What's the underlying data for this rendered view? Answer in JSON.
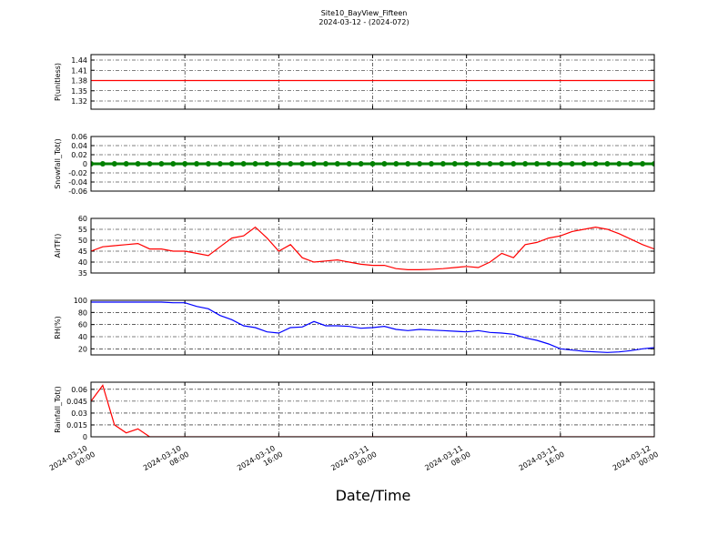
{
  "title": "Site10_BayView_Fifteen",
  "subtitle": "2024-03-12 - (2024-072)",
  "xlabel": "Date/Time",
  "chart_data": [
    {
      "type": "line",
      "ylabel": "P(unitless)",
      "color": "#ff0000",
      "ylim": [
        1.296,
        1.456
      ],
      "yticks": [
        1.32,
        1.35,
        1.38,
        1.41,
        1.44
      ],
      "grid": true,
      "xlim": [
        "2024-03-10 00:00",
        "2024-03-12 00:00"
      ],
      "xticks": [
        "2024-03-10 00:00",
        "2024-03-10 08:00",
        "2024-03-10 16:00",
        "2024-03-11 00:00",
        "2024-03-11 08:00",
        "2024-03-11 16:00",
        "2024-03-12 00:00"
      ],
      "x": [
        "2024-03-10 00:00",
        "2024-03-10 01:00",
        "2024-03-10 02:00",
        "2024-03-10 03:00",
        "2024-03-10 04:00",
        "2024-03-10 05:00",
        "2024-03-10 06:00",
        "2024-03-10 07:00",
        "2024-03-10 08:00",
        "2024-03-10 09:00",
        "2024-03-10 10:00",
        "2024-03-10 11:00",
        "2024-03-10 12:00",
        "2024-03-10 13:00",
        "2024-03-10 14:00",
        "2024-03-10 15:00",
        "2024-03-10 16:00",
        "2024-03-10 17:00",
        "2024-03-10 18:00",
        "2024-03-10 19:00",
        "2024-03-10 20:00",
        "2024-03-10 21:00",
        "2024-03-10 22:00",
        "2024-03-10 23:00",
        "2024-03-11 00:00",
        "2024-03-11 01:00",
        "2024-03-11 02:00",
        "2024-03-11 03:00",
        "2024-03-11 04:00",
        "2024-03-11 05:00",
        "2024-03-11 06:00",
        "2024-03-11 07:00",
        "2024-03-11 08:00",
        "2024-03-11 09:00",
        "2024-03-11 10:00",
        "2024-03-11 11:00",
        "2024-03-11 12:00",
        "2024-03-11 13:00",
        "2024-03-11 14:00",
        "2024-03-11 15:00",
        "2024-03-11 16:00",
        "2024-03-11 17:00",
        "2024-03-11 18:00",
        "2024-03-11 19:00",
        "2024-03-11 20:00",
        "2024-03-11 21:00",
        "2024-03-11 22:00",
        "2024-03-11 23:00",
        "2024-03-12 00:00"
      ],
      "values": [
        1.38,
        1.38,
        1.38,
        1.38,
        1.38,
        1.38,
        1.38,
        1.38,
        1.38,
        1.38,
        1.38,
        1.38,
        1.38,
        1.38,
        1.38,
        1.38,
        1.38,
        1.38,
        1.38,
        1.38,
        1.38,
        1.38,
        1.38,
        1.38,
        1.38,
        1.38,
        1.38,
        1.38,
        1.38,
        1.38,
        1.38,
        1.38,
        1.38,
        1.38,
        1.38,
        1.38,
        1.38,
        1.38,
        1.38,
        1.38,
        1.38,
        1.38,
        1.38,
        1.38,
        1.38,
        1.38,
        1.38,
        1.38,
        1.38
      ]
    },
    {
      "type": "line",
      "ylabel": "Snowfall_Tot()",
      "color": "#008000",
      "markers": true,
      "ylim": [
        -0.06,
        0.06
      ],
      "yticks": [
        -0.06,
        -0.04,
        -0.02,
        0.0,
        0.02,
        0.04,
        0.06
      ],
      "grid": true,
      "xlim": [
        "2024-03-10 00:00",
        "2024-03-12 00:00"
      ],
      "xticks": [
        "2024-03-10 00:00",
        "2024-03-10 08:00",
        "2024-03-10 16:00",
        "2024-03-11 00:00",
        "2024-03-11 08:00",
        "2024-03-11 16:00",
        "2024-03-12 00:00"
      ],
      "x": [
        "2024-03-10 00:00",
        "2024-03-10 01:00",
        "2024-03-10 02:00",
        "2024-03-10 03:00",
        "2024-03-10 04:00",
        "2024-03-10 05:00",
        "2024-03-10 06:00",
        "2024-03-10 07:00",
        "2024-03-10 08:00",
        "2024-03-10 09:00",
        "2024-03-10 10:00",
        "2024-03-10 11:00",
        "2024-03-10 12:00",
        "2024-03-10 13:00",
        "2024-03-10 14:00",
        "2024-03-10 15:00",
        "2024-03-10 16:00",
        "2024-03-10 17:00",
        "2024-03-10 18:00",
        "2024-03-10 19:00",
        "2024-03-10 20:00",
        "2024-03-10 21:00",
        "2024-03-10 22:00",
        "2024-03-10 23:00",
        "2024-03-11 00:00",
        "2024-03-11 01:00",
        "2024-03-11 02:00",
        "2024-03-11 03:00",
        "2024-03-11 04:00",
        "2024-03-11 05:00",
        "2024-03-11 06:00",
        "2024-03-11 07:00",
        "2024-03-11 08:00",
        "2024-03-11 09:00",
        "2024-03-11 10:00",
        "2024-03-11 11:00",
        "2024-03-11 12:00",
        "2024-03-11 13:00",
        "2024-03-11 14:00",
        "2024-03-11 15:00",
        "2024-03-11 16:00",
        "2024-03-11 17:00",
        "2024-03-11 18:00",
        "2024-03-11 19:00",
        "2024-03-11 20:00",
        "2024-03-11 21:00",
        "2024-03-11 22:00",
        "2024-03-11 23:00",
        "2024-03-12 00:00"
      ],
      "values": [
        0,
        0,
        0,
        0,
        0,
        0,
        0,
        0,
        0,
        0,
        0,
        0,
        0,
        0,
        0,
        0,
        0,
        0,
        0,
        0,
        0,
        0,
        0,
        0,
        0,
        0,
        0,
        0,
        0,
        0,
        0,
        0,
        0,
        0,
        0,
        0,
        0,
        0,
        0,
        0,
        0,
        0,
        0,
        0,
        0,
        0,
        0,
        0,
        0
      ]
    },
    {
      "type": "line",
      "ylabel": "AirTF()",
      "color": "#ff0000",
      "ylim": [
        35,
        60
      ],
      "yticks": [
        35,
        40,
        45,
        50,
        55,
        60
      ],
      "grid": true,
      "xlim": [
        "2024-03-10 00:00",
        "2024-03-12 00:00"
      ],
      "xticks": [
        "2024-03-10 00:00",
        "2024-03-10 08:00",
        "2024-03-10 16:00",
        "2024-03-11 00:00",
        "2024-03-11 08:00",
        "2024-03-11 16:00",
        "2024-03-12 00:00"
      ],
      "x": [
        "2024-03-10 00:00",
        "2024-03-10 01:00",
        "2024-03-10 02:00",
        "2024-03-10 03:00",
        "2024-03-10 04:00",
        "2024-03-10 05:00",
        "2024-03-10 06:00",
        "2024-03-10 07:00",
        "2024-03-10 08:00",
        "2024-03-10 09:00",
        "2024-03-10 10:00",
        "2024-03-10 11:00",
        "2024-03-10 12:00",
        "2024-03-10 13:00",
        "2024-03-10 14:00",
        "2024-03-10 15:00",
        "2024-03-10 16:00",
        "2024-03-10 17:00",
        "2024-03-10 18:00",
        "2024-03-10 19:00",
        "2024-03-10 20:00",
        "2024-03-10 21:00",
        "2024-03-10 22:00",
        "2024-03-10 23:00",
        "2024-03-11 00:00",
        "2024-03-11 01:00",
        "2024-03-11 02:00",
        "2024-03-11 03:00",
        "2024-03-11 04:00",
        "2024-03-11 05:00",
        "2024-03-11 06:00",
        "2024-03-11 07:00",
        "2024-03-11 08:00",
        "2024-03-11 09:00",
        "2024-03-11 10:00",
        "2024-03-11 11:00",
        "2024-03-11 12:00",
        "2024-03-11 13:00",
        "2024-03-11 14:00",
        "2024-03-11 15:00",
        "2024-03-11 16:00",
        "2024-03-11 17:00",
        "2024-03-11 18:00",
        "2024-03-11 19:00",
        "2024-03-11 20:00",
        "2024-03-11 21:00",
        "2024-03-11 22:00",
        "2024-03-11 23:00",
        "2024-03-12 00:00"
      ],
      "values": [
        45,
        47,
        47.5,
        48,
        48.5,
        46,
        46,
        45,
        45,
        44,
        43,
        47,
        51,
        52,
        56,
        51,
        45,
        48,
        42,
        40,
        40.5,
        41,
        40,
        39,
        38.5,
        38.5,
        37,
        36.5,
        36.5,
        36.7,
        37,
        37.5,
        38,
        37.5,
        40,
        44,
        42,
        48,
        49,
        51,
        52,
        54,
        55,
        56,
        55,
        53,
        50.5,
        48,
        46
      ]
    },
    {
      "type": "line",
      "ylabel": "RH(%)",
      "color": "#0000ff",
      "ylim": [
        10,
        100
      ],
      "yticks": [
        20,
        40,
        60,
        80,
        100
      ],
      "grid": true,
      "xlim": [
        "2024-03-10 00:00",
        "2024-03-12 00:00"
      ],
      "xticks": [
        "2024-03-10 00:00",
        "2024-03-10 08:00",
        "2024-03-10 16:00",
        "2024-03-11 00:00",
        "2024-03-11 08:00",
        "2024-03-11 16:00",
        "2024-03-12 00:00"
      ],
      "x": [
        "2024-03-10 00:00",
        "2024-03-10 01:00",
        "2024-03-10 02:00",
        "2024-03-10 03:00",
        "2024-03-10 04:00",
        "2024-03-10 05:00",
        "2024-03-10 06:00",
        "2024-03-10 07:00",
        "2024-03-10 08:00",
        "2024-03-10 09:00",
        "2024-03-10 10:00",
        "2024-03-10 11:00",
        "2024-03-10 12:00",
        "2024-03-10 13:00",
        "2024-03-10 14:00",
        "2024-03-10 15:00",
        "2024-03-10 16:00",
        "2024-03-10 17:00",
        "2024-03-10 18:00",
        "2024-03-10 19:00",
        "2024-03-10 20:00",
        "2024-03-10 21:00",
        "2024-03-10 22:00",
        "2024-03-10 23:00",
        "2024-03-11 00:00",
        "2024-03-11 01:00",
        "2024-03-11 02:00",
        "2024-03-11 03:00",
        "2024-03-11 04:00",
        "2024-03-11 05:00",
        "2024-03-11 06:00",
        "2024-03-11 07:00",
        "2024-03-11 08:00",
        "2024-03-11 09:00",
        "2024-03-11 10:00",
        "2024-03-11 11:00",
        "2024-03-11 12:00",
        "2024-03-11 13:00",
        "2024-03-11 14:00",
        "2024-03-11 15:00",
        "2024-03-11 16:00",
        "2024-03-11 17:00",
        "2024-03-11 18:00",
        "2024-03-11 19:00",
        "2024-03-11 20:00",
        "2024-03-11 21:00",
        "2024-03-11 22:00",
        "2024-03-11 23:00",
        "2024-03-12 00:00"
      ],
      "values": [
        97,
        97,
        97,
        97,
        97,
        97,
        97,
        96,
        96,
        90,
        86,
        75,
        68,
        58,
        55,
        48,
        46,
        55,
        56,
        65,
        58,
        58,
        57,
        54,
        55,
        57,
        52,
        50,
        52,
        51,
        50,
        49,
        48,
        50,
        47,
        46,
        44,
        38,
        34,
        28,
        20,
        18,
        16,
        15,
        14,
        15,
        17,
        20,
        22
      ]
    },
    {
      "type": "line",
      "ylabel": "Rainfall_Tot()",
      "color": "#ff0000",
      "ylim": [
        0,
        0.069
      ],
      "yticks": [
        0.0,
        0.015,
        0.03,
        0.045,
        0.06
      ],
      "grid": true,
      "xlim": [
        "2024-03-10 00:00",
        "2024-03-12 00:00"
      ],
      "xticks": [
        "2024-03-10 00:00",
        "2024-03-10 08:00",
        "2024-03-10 16:00",
        "2024-03-11 00:00",
        "2024-03-11 08:00",
        "2024-03-11 16:00",
        "2024-03-12 00:00"
      ],
      "x": [
        "2024-03-10 00:00",
        "2024-03-10 01:00",
        "2024-03-10 02:00",
        "2024-03-10 03:00",
        "2024-03-10 04:00",
        "2024-03-10 05:00",
        "2024-03-10 06:00",
        "2024-03-10 07:00",
        "2024-03-10 08:00",
        "2024-03-10 09:00",
        "2024-03-10 10:00",
        "2024-03-10 11:00",
        "2024-03-10 12:00",
        "2024-03-10 13:00",
        "2024-03-10 14:00",
        "2024-03-10 15:00",
        "2024-03-10 16:00",
        "2024-03-10 17:00",
        "2024-03-10 18:00",
        "2024-03-10 19:00",
        "2024-03-10 20:00",
        "2024-03-10 21:00",
        "2024-03-10 22:00",
        "2024-03-10 23:00",
        "2024-03-11 00:00",
        "2024-03-11 01:00",
        "2024-03-11 02:00",
        "2024-03-11 03:00",
        "2024-03-11 04:00",
        "2024-03-11 05:00",
        "2024-03-11 06:00",
        "2024-03-11 07:00",
        "2024-03-11 08:00",
        "2024-03-11 09:00",
        "2024-03-11 10:00",
        "2024-03-11 11:00",
        "2024-03-11 12:00",
        "2024-03-11 13:00",
        "2024-03-11 14:00",
        "2024-03-11 15:00",
        "2024-03-11 16:00",
        "2024-03-11 17:00",
        "2024-03-11 18:00",
        "2024-03-11 19:00",
        "2024-03-11 20:00",
        "2024-03-11 21:00",
        "2024-03-11 22:00",
        "2024-03-11 23:00",
        "2024-03-12 00:00"
      ],
      "values": [
        0.045,
        0.065,
        0.015,
        0.005,
        0.01,
        0,
        0,
        0,
        0,
        0,
        0,
        0,
        0,
        0,
        0,
        0,
        0,
        0,
        0,
        0,
        0,
        0,
        0,
        0,
        0,
        0,
        0,
        0,
        0,
        0,
        0,
        0,
        0,
        0,
        0,
        0,
        0,
        0,
        0,
        0,
        0,
        0,
        0,
        0,
        0,
        0,
        0,
        0,
        0
      ]
    }
  ]
}
